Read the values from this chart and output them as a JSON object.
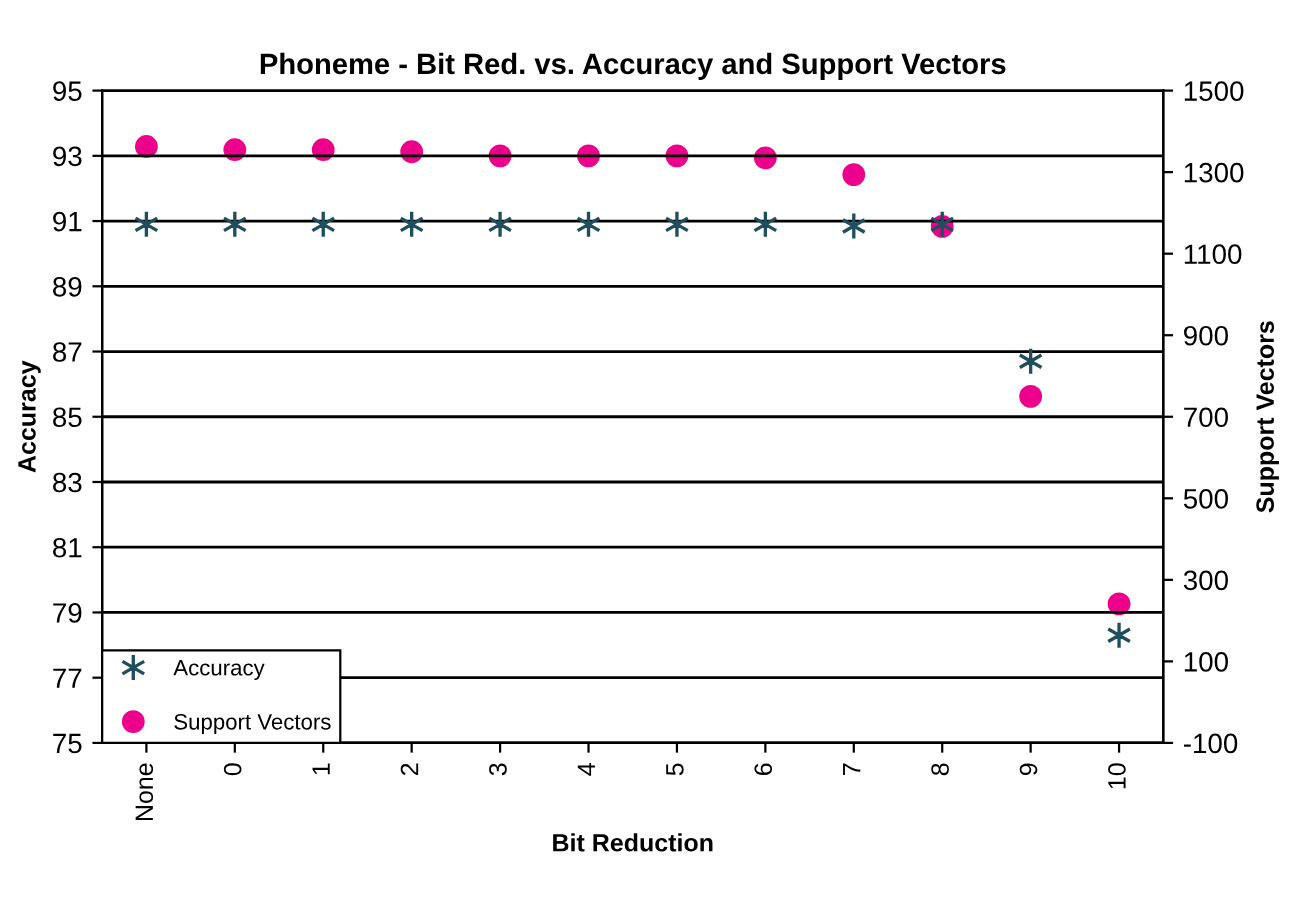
{
  "chart_data": {
    "type": "scatter",
    "title": "Phoneme - Bit Red. vs. Accuracy and Support Vectors",
    "xlabel": "Bit Reduction",
    "ylabel": "Accuracy",
    "y2label": "Support Vectors",
    "categories": [
      "None",
      "0",
      "1",
      "2",
      "3",
      "4",
      "5",
      "6",
      "7",
      "8",
      "9",
      "10"
    ],
    "series": [
      {
        "name": "Accuracy",
        "color": "#1f4e5f",
        "marker": "cross",
        "values": [
          90.9,
          90.9,
          90.9,
          90.9,
          90.9,
          90.9,
          90.9,
          90.9,
          90.85,
          90.9,
          86.7,
          78.3
        ]
      },
      {
        "name": "Support Vectors",
        "color": "#ec008c",
        "marker": "circle",
        "axis": "y2",
        "values": [
          1363,
          1355,
          1355,
          1350,
          1340,
          1340,
          1340,
          1335,
          1294,
          1167,
          750,
          241
        ]
      }
    ],
    "ylim": [
      75,
      95
    ],
    "yticks": [
      75,
      77,
      79,
      81,
      83,
      85,
      87,
      89,
      91,
      93,
      95
    ],
    "y2lim": [
      -100,
      1500
    ],
    "y2ticks": [
      -100,
      100,
      300,
      500,
      700,
      900,
      1100,
      1300,
      1500
    ],
    "grid": "y",
    "legend": "bottom left"
  }
}
